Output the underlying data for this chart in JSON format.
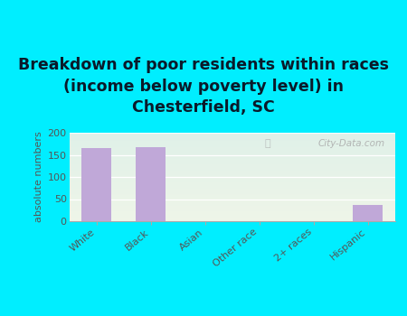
{
  "title": "Breakdown of poor residents within races\n(income below poverty level) in\nChesterfield, SC",
  "categories": [
    "White",
    "Black",
    "Asian",
    "Other race",
    "2+ races",
    "Hispanic"
  ],
  "values": [
    165,
    168,
    0,
    0,
    0,
    36
  ],
  "bar_color": "#c0a8d8",
  "background_color": "#00eeff",
  "plot_bg_color_top": "#eef5e8",
  "plot_bg_color_bottom": "#dff0e8",
  "ylabel": "absolute numbers",
  "ylim": [
    0,
    200
  ],
  "yticks": [
    0,
    50,
    100,
    150,
    200
  ],
  "title_fontsize": 12.5,
  "title_color": "#0a1a2a",
  "watermark": "City-Data.com",
  "tick_color": "#555555",
  "grid_color": "#cccccc"
}
